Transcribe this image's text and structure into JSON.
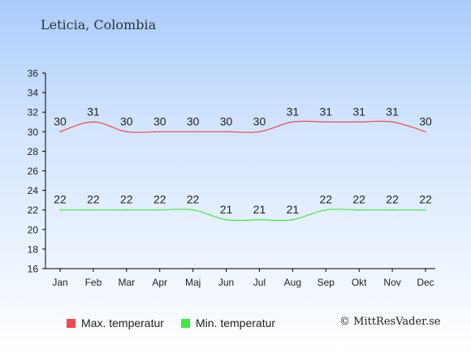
{
  "title": "Leticia, Colombia",
  "credit": "© MittResVader.se",
  "colors": {
    "max": "#f0484b",
    "min": "#3ee93a",
    "axis": "#000000",
    "text": "#222222"
  },
  "chart_data": {
    "type": "line",
    "categories": [
      "Jan",
      "Feb",
      "Mar",
      "Apr",
      "Maj",
      "Jun",
      "Jul",
      "Aug",
      "Sep",
      "Okt",
      "Nov",
      "Dec"
    ],
    "ylim": [
      16,
      36
    ],
    "yticks": [
      16,
      18,
      20,
      22,
      24,
      26,
      28,
      30,
      32,
      34,
      36
    ],
    "grid": false,
    "legend_position": "bottom",
    "series": [
      {
        "name": "Max. temperatur",
        "color": "#f0484b",
        "values": [
          30,
          31,
          30,
          30,
          30,
          30,
          30,
          31,
          31,
          31,
          31,
          30
        ]
      },
      {
        "name": "Min. temperatur",
        "color": "#3ee93a",
        "values": [
          22,
          22,
          22,
          22,
          22,
          21,
          21,
          21,
          22,
          22,
          22,
          22
        ]
      }
    ]
  }
}
